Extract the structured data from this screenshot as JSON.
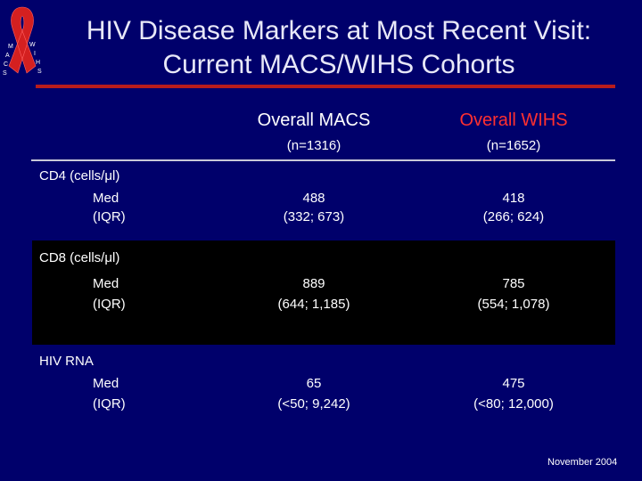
{
  "title": {
    "line1": "HIV Disease Markers at Most Recent Visit:",
    "line2": "Current MACS/WIHS Cohorts"
  },
  "logo": {
    "icon": "red-ribbon-icon",
    "lettering": "MACS WIHS",
    "color": "#d42020"
  },
  "table": {
    "columns": [
      {
        "label": "Overall MACS",
        "n": "(n=1316)",
        "color": "#ffffff"
      },
      {
        "label": "Overall WIHS",
        "n": "(n=1652)",
        "color": "#ff3030"
      }
    ],
    "sections": [
      {
        "label": "CD4 (cells/μl)",
        "rows": [
          "Med",
          "(IQR)"
        ],
        "macs": [
          "488",
          "(332; 673)"
        ],
        "wihs": [
          "418",
          "(266; 624)"
        ]
      },
      {
        "label": "CD8 (cells/μl)",
        "rows": [
          "Med",
          "(IQR)"
        ],
        "macs": [
          "889",
          "(644; 1,185)"
        ],
        "wihs": [
          "785",
          "(554; 1,078)"
        ]
      },
      {
        "label": "HIV RNA",
        "rows": [
          "Med",
          "(IQR)"
        ],
        "macs": [
          "65",
          "(<50; 9,242)"
        ],
        "wihs": [
          "475",
          "(<80; 12,000)"
        ]
      }
    ]
  },
  "footer": {
    "date": "November  2004"
  }
}
